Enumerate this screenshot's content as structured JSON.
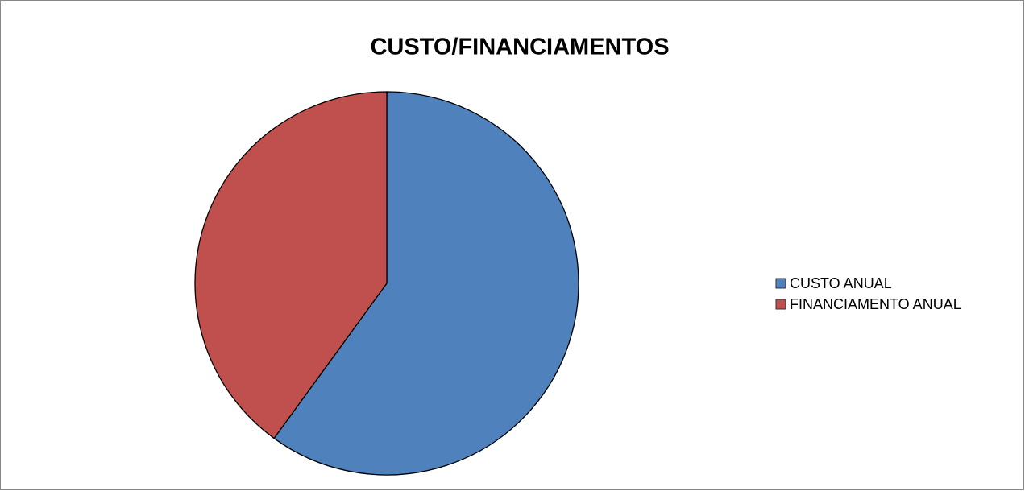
{
  "chart_data": {
    "type": "pie",
    "title": "CUSTO/FINANCIAMENTOS",
    "categories": [
      "CUSTO ANUAL",
      "FINANCIAMENTO ANUAL"
    ],
    "values": [
      60,
      40
    ],
    "colors": [
      "#4f81bd",
      "#c0504d"
    ],
    "legend": "right"
  }
}
